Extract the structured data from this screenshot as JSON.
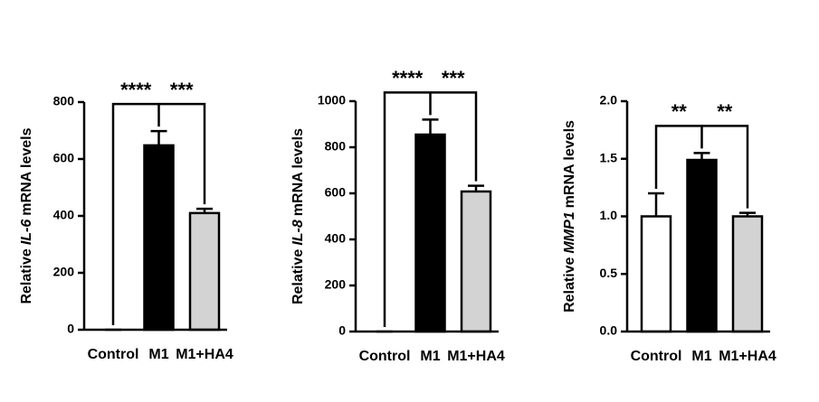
{
  "chart_data": [
    {
      "type": "bar",
      "ylabel_parts": [
        "Relative",
        "IL-6",
        "mRNA levels"
      ],
      "categories": [
        "Control",
        "M1",
        "M1+HA4"
      ],
      "values": [
        0,
        648,
        410
      ],
      "errors": [
        0,
        50,
        15
      ],
      "colors": [
        "#ffffff",
        "#000000",
        "#d3d3d3"
      ],
      "ylim": [
        0,
        800
      ],
      "yticks": [
        0,
        200,
        400,
        600,
        800
      ],
      "comparisons": [
        {
          "from": 0,
          "to": 1,
          "label": "****"
        },
        {
          "from": 1,
          "to": 2,
          "label": "***"
        }
      ]
    },
    {
      "type": "bar",
      "ylabel_parts": [
        "Relative",
        "IL-8",
        "mRNA levels"
      ],
      "categories": [
        "Control",
        "M1",
        "M1+HA4"
      ],
      "values": [
        0,
        855,
        608
      ],
      "errors": [
        0,
        65,
        25
      ],
      "colors": [
        "#ffffff",
        "#000000",
        "#d3d3d3"
      ],
      "ylim": [
        0,
        1000
      ],
      "yticks": [
        0,
        200,
        400,
        600,
        800,
        1000
      ],
      "comparisons": [
        {
          "from": 0,
          "to": 1,
          "label": "****"
        },
        {
          "from": 1,
          "to": 2,
          "label": "***"
        }
      ]
    },
    {
      "type": "bar",
      "ylabel_parts": [
        "Relative",
        "MMP1",
        "mRNA levels"
      ],
      "categories": [
        "Control",
        "M1",
        "M1+HA4"
      ],
      "values": [
        1.0,
        1.49,
        1.0
      ],
      "errors": [
        0.2,
        0.06,
        0.03
      ],
      "colors": [
        "#ffffff",
        "#000000",
        "#d3d3d3"
      ],
      "ylim": [
        0,
        2.0
      ],
      "yticks": [
        {
          "value": 0,
          "label": "0.0"
        },
        0.5,
        {
          "value": 1.0,
          "label": "1.0"
        },
        1.5,
        {
          "value": 2.0,
          "label": "2.0"
        }
      ],
      "comparisons": [
        {
          "from": 0,
          "to": 1,
          "label": "**"
        },
        {
          "from": 1,
          "to": 2,
          "label": "**"
        }
      ]
    }
  ]
}
